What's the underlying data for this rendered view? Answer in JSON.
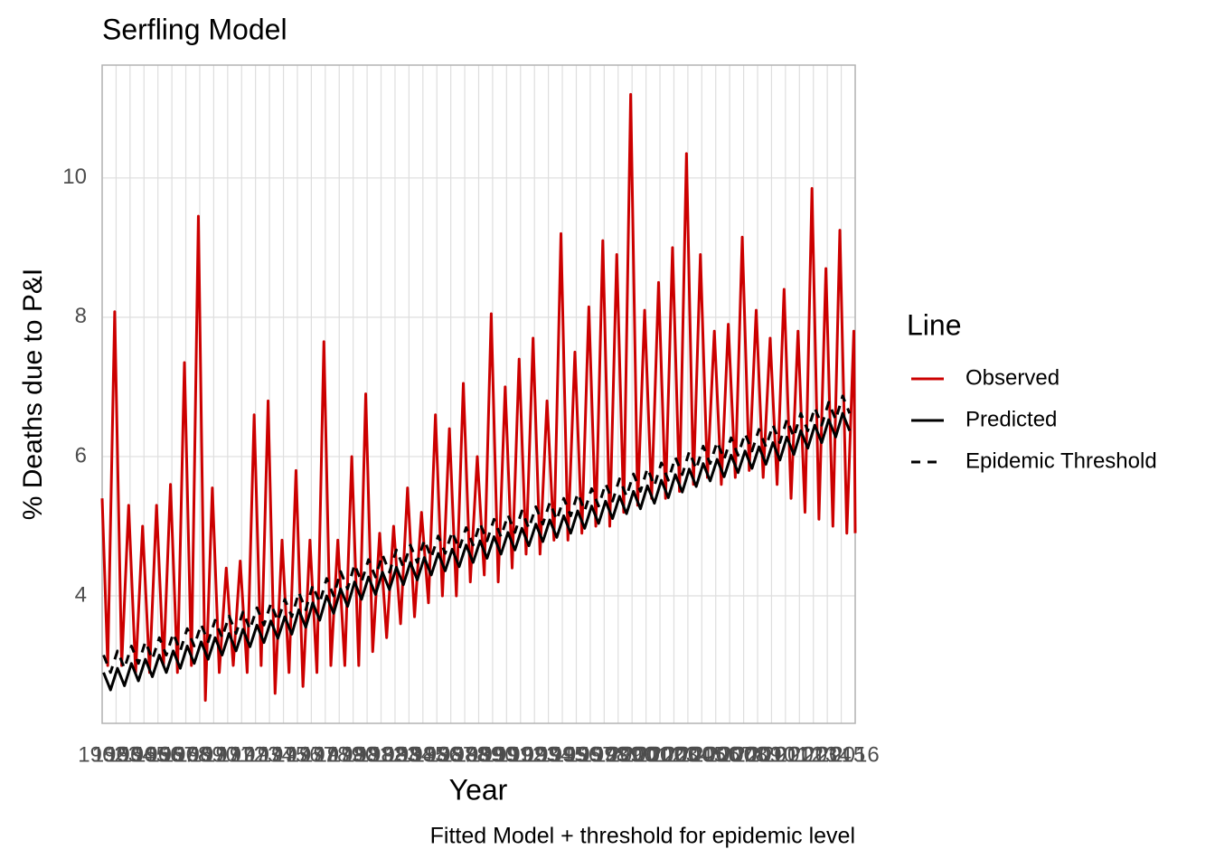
{
  "chart_data": {
    "type": "line",
    "title": "Serfling Model",
    "xlabel": "Year",
    "ylabel": "% Deaths due to P&I",
    "caption": "Fitted Model + threshold for epidemic level",
    "legend_title": "Line",
    "legend_position": "right",
    "grid": true,
    "xlim": [
      1962,
      2016
    ],
    "ylim": [
      2.17,
      11.62
    ],
    "xticks": [
      1962,
      1963,
      1964,
      1965,
      1966,
      1967,
      1968,
      1969,
      1970,
      1971,
      1972,
      1973,
      1974,
      1975,
      1976,
      1977,
      1978,
      1979,
      1980,
      1981,
      1982,
      1983,
      1984,
      1985,
      1986,
      1987,
      1988,
      1989,
      1990,
      1991,
      1992,
      1993,
      1994,
      1995,
      1996,
      1997,
      1998,
      1999,
      2000,
      2001,
      2002,
      2003,
      2004,
      2005,
      2006,
      2007,
      2008,
      2009,
      2010,
      2011,
      2012,
      2013,
      2014,
      2015,
      2016
    ],
    "yticks": [
      4,
      6,
      8,
      10
    ],
    "series": [
      {
        "name": "Observed",
        "color": "#cc0000",
        "linetype": "solid",
        "x": [
          1962,
          1962.4,
          1962.9,
          1963.4,
          1963.9,
          1964.4,
          1964.9,
          1965.4,
          1965.9,
          1966.4,
          1966.9,
          1967.4,
          1967.9,
          1968.4,
          1968.9,
          1969.4,
          1969.9,
          1970.4,
          1970.9,
          1971.4,
          1971.9,
          1972.4,
          1972.9,
          1973.4,
          1973.9,
          1974.4,
          1974.9,
          1975.4,
          1975.9,
          1976.4,
          1976.9,
          1977.4,
          1977.9,
          1978.4,
          1978.9,
          1979.4,
          1979.9,
          1980.4,
          1980.9,
          1981.4,
          1981.9,
          1982.4,
          1982.9,
          1983.4,
          1983.9,
          1984.4,
          1984.9,
          1985.4,
          1985.9,
          1986.4,
          1986.9,
          1987.4,
          1987.9,
          1988.4,
          1988.9,
          1989.4,
          1989.9,
          1990.4,
          1990.9,
          1991.4,
          1991.9,
          1992.4,
          1992.9,
          1993.4,
          1993.9,
          1994.4,
          1994.9,
          1995.4,
          1995.9,
          1996.4,
          1996.9,
          1997.4,
          1997.9,
          1998.4,
          1998.9,
          1999.4,
          1999.9,
          2000.4,
          2000.9,
          2001.4,
          2001.9,
          2002.4,
          2002.9,
          2003.4,
          2003.9,
          2004.4,
          2004.9,
          2005.4,
          2005.9,
          2006.4,
          2006.9,
          2007.4,
          2007.9,
          2008.4,
          2008.9,
          2009.4,
          2009.9,
          2010.4,
          2010.9,
          2011.4,
          2011.9,
          2012.4,
          2012.9,
          2013.4,
          2013.9,
          2014.4,
          2014.9,
          2015.4,
          2015.9,
          2016
        ],
        "values": [
          5.4,
          3.0,
          8.08,
          3.0,
          5.3,
          2.9,
          5.0,
          2.9,
          5.3,
          3.0,
          5.6,
          2.9,
          7.35,
          3.0,
          9.45,
          2.5,
          5.55,
          2.9,
          4.4,
          3.0,
          4.5,
          2.9,
          6.6,
          3.0,
          6.8,
          2.6,
          4.8,
          2.9,
          5.8,
          2.7,
          4.8,
          2.9,
          7.65,
          3.0,
          4.8,
          3.0,
          6.0,
          3.0,
          6.9,
          3.2,
          4.9,
          3.4,
          5.0,
          3.6,
          5.55,
          3.7,
          5.2,
          3.9,
          6.6,
          4.0,
          6.4,
          4.0,
          7.05,
          4.2,
          6.0,
          4.3,
          8.05,
          4.2,
          7.0,
          4.4,
          7.4,
          4.6,
          7.7,
          4.6,
          6.8,
          4.8,
          9.2,
          4.8,
          7.5,
          4.9,
          8.15,
          5.0,
          9.1,
          5.0,
          8.9,
          5.2,
          11.2,
          5.3,
          8.1,
          5.4,
          8.5,
          5.4,
          9.0,
          5.5,
          10.35,
          5.6,
          8.9,
          5.7,
          7.8,
          5.6,
          7.9,
          5.7,
          9.15,
          5.8,
          8.1,
          5.7,
          7.7,
          5.6,
          8.4,
          5.4,
          7.8,
          5.2,
          9.85,
          5.1,
          8.7,
          5.0,
          9.25,
          4.9,
          7.8,
          4.9
        ]
      },
      {
        "name": "Predicted",
        "color": "#000000",
        "linetype": "solid",
        "x": [
          1962.1,
          1962.6,
          1963.1,
          1963.6,
          1964.1,
          1964.6,
          1965.1,
          1965.6,
          1966.1,
          1966.6,
          1967.1,
          1967.6,
          1968.1,
          1968.6,
          1969.1,
          1969.6,
          1970.1,
          1970.6,
          1971.1,
          1971.6,
          1972.1,
          1972.6,
          1973.1,
          1973.6,
          1974.1,
          1974.6,
          1975.1,
          1975.6,
          1976.1,
          1976.6,
          1977.1,
          1977.6,
          1978.1,
          1978.6,
          1979.1,
          1979.6,
          1980.1,
          1980.6,
          1981.1,
          1981.6,
          1982.1,
          1982.6,
          1983.1,
          1983.6,
          1984.1,
          1984.6,
          1985.1,
          1985.6,
          1986.1,
          1986.6,
          1987.1,
          1987.6,
          1988.1,
          1988.6,
          1989.1,
          1989.6,
          1990.1,
          1990.6,
          1991.1,
          1991.6,
          1992.1,
          1992.6,
          1993.1,
          1993.6,
          1994.1,
          1994.6,
          1995.1,
          1995.6,
          1996.1,
          1996.6,
          1997.1,
          1997.6,
          1998.1,
          1998.6,
          1999.1,
          1999.6,
          2000.1,
          2000.6,
          2001.1,
          2001.6,
          2002.1,
          2002.6,
          2003.1,
          2003.6,
          2004.1,
          2004.6,
          2005.1,
          2005.6,
          2006.1,
          2006.6,
          2007.1,
          2007.6,
          2008.1,
          2008.6,
          2009.1,
          2009.6,
          2010.1,
          2010.6,
          2011.1,
          2011.6,
          2012.1,
          2012.6,
          2013.1,
          2013.6,
          2014.1,
          2014.6,
          2015.1,
          2015.6
        ],
        "values": [
          2.9,
          2.65,
          2.96,
          2.71,
          3.03,
          2.78,
          3.09,
          2.84,
          3.15,
          2.9,
          3.21,
          2.96,
          3.28,
          3.03,
          3.34,
          3.09,
          3.4,
          3.15,
          3.46,
          3.21,
          3.52,
          3.27,
          3.58,
          3.33,
          3.64,
          3.39,
          3.7,
          3.45,
          3.8,
          3.55,
          3.9,
          3.65,
          4.0,
          3.75,
          4.1,
          3.85,
          4.2,
          3.95,
          4.27,
          4.02,
          4.34,
          4.09,
          4.41,
          4.16,
          4.48,
          4.23,
          4.55,
          4.3,
          4.61,
          4.36,
          4.67,
          4.42,
          4.73,
          4.48,
          4.79,
          4.54,
          4.85,
          4.6,
          4.91,
          4.66,
          4.97,
          4.72,
          5.03,
          4.78,
          5.09,
          4.84,
          5.15,
          4.9,
          5.22,
          4.97,
          5.29,
          5.04,
          5.36,
          5.11,
          5.43,
          5.18,
          5.5,
          5.25,
          5.58,
          5.33,
          5.66,
          5.41,
          5.74,
          5.49,
          5.82,
          5.57,
          5.9,
          5.65,
          5.96,
          5.71,
          6.02,
          5.77,
          6.08,
          5.83,
          6.14,
          5.89,
          6.2,
          5.95,
          6.28,
          6.03,
          6.37,
          6.12,
          6.45,
          6.2,
          6.53,
          6.28,
          6.62,
          6.37
        ]
      },
      {
        "name": "Epidemic Threshold",
        "color": "#000000",
        "linetype": "dashed",
        "x": [
          1962.1,
          1962.6,
          1963.1,
          1963.6,
          1964.1,
          1964.6,
          1965.1,
          1965.6,
          1966.1,
          1966.6,
          1967.1,
          1967.6,
          1968.1,
          1968.6,
          1969.1,
          1969.6,
          1970.1,
          1970.6,
          1971.1,
          1971.6,
          1972.1,
          1972.6,
          1973.1,
          1973.6,
          1974.1,
          1974.6,
          1975.1,
          1975.6,
          1976.1,
          1976.6,
          1977.1,
          1977.6,
          1978.1,
          1978.6,
          1979.1,
          1979.6,
          1980.1,
          1980.6,
          1981.1,
          1981.6,
          1982.1,
          1982.6,
          1983.1,
          1983.6,
          1984.1,
          1984.6,
          1985.1,
          1985.6,
          1986.1,
          1986.6,
          1987.1,
          1987.6,
          1988.1,
          1988.6,
          1989.1,
          1989.6,
          1990.1,
          1990.6,
          1991.1,
          1991.6,
          1992.1,
          1992.6,
          1993.1,
          1993.6,
          1994.1,
          1994.6,
          1995.1,
          1995.6,
          1996.1,
          1996.6,
          1997.1,
          1997.6,
          1998.1,
          1998.6,
          1999.1,
          1999.6,
          2000.1,
          2000.6,
          2001.1,
          2001.6,
          2002.1,
          2002.6,
          2003.1,
          2003.6,
          2004.1,
          2004.6,
          2005.1,
          2005.6,
          2006.1,
          2006.6,
          2007.1,
          2007.6,
          2008.1,
          2008.6,
          2009.1,
          2009.6,
          2010.1,
          2010.6,
          2011.1,
          2011.6,
          2012.1,
          2012.6,
          2013.1,
          2013.6,
          2014.1,
          2014.6,
          2015.1,
          2015.6
        ],
        "values": [
          3.15,
          2.9,
          3.21,
          2.96,
          3.28,
          3.03,
          3.34,
          3.09,
          3.4,
          3.15,
          3.46,
          3.21,
          3.53,
          3.28,
          3.59,
          3.34,
          3.65,
          3.4,
          3.71,
          3.46,
          3.77,
          3.52,
          3.83,
          3.58,
          3.89,
          3.64,
          3.95,
          3.7,
          4.05,
          3.8,
          4.15,
          3.9,
          4.25,
          4.0,
          4.35,
          4.1,
          4.45,
          4.2,
          4.52,
          4.27,
          4.59,
          4.34,
          4.66,
          4.41,
          4.73,
          4.48,
          4.8,
          4.55,
          4.86,
          4.61,
          4.92,
          4.67,
          4.98,
          4.73,
          5.04,
          4.79,
          5.1,
          4.85,
          5.16,
          4.91,
          5.22,
          4.97,
          5.28,
          5.03,
          5.34,
          5.09,
          5.4,
          5.15,
          5.47,
          5.22,
          5.54,
          5.29,
          5.61,
          5.36,
          5.68,
          5.43,
          5.75,
          5.5,
          5.83,
          5.58,
          5.91,
          5.66,
          5.99,
          5.74,
          6.07,
          5.82,
          6.15,
          5.9,
          6.21,
          5.96,
          6.27,
          6.02,
          6.33,
          6.08,
          6.39,
          6.14,
          6.45,
          6.2,
          6.53,
          6.28,
          6.62,
          6.37,
          6.7,
          6.45,
          6.78,
          6.53,
          6.87,
          6.62
        ]
      }
    ]
  }
}
